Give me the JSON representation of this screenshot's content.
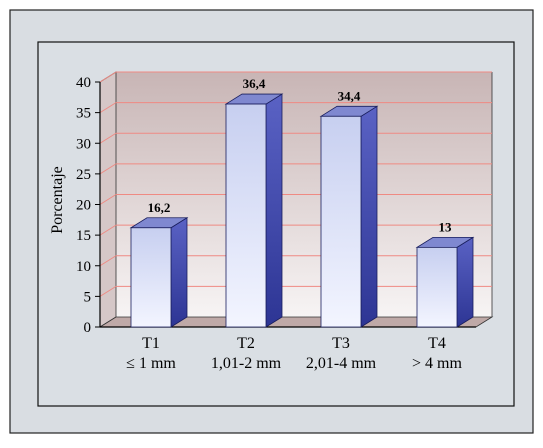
{
  "chart_data": {
    "type": "bar",
    "ylabel": "Porcentaje",
    "ylim": [
      0,
      40
    ],
    "y_ticks": [
      0,
      5,
      10,
      15,
      20,
      25,
      30,
      35,
      40
    ],
    "grid": true,
    "categories": [
      {
        "code": "T1",
        "range": "≤ 1 mm"
      },
      {
        "code": "T2",
        "range": "1,01-2 mm"
      },
      {
        "code": "T3",
        "range": "2,01-4 mm"
      },
      {
        "code": "T4",
        "range": "> 4 mm"
      }
    ],
    "values": [
      16.2,
      36.4,
      34.4,
      13
    ],
    "value_labels": [
      "16,2",
      "36,4",
      "34,4",
      "13"
    ]
  },
  "colors": {
    "frame_bg": "#d9dde2",
    "plot_bg_top": "#c8b5b5",
    "plot_bg_bottom": "#f7f4f4",
    "gridline": "#ef8a83",
    "floor": "#bfa9a7",
    "bar_front_top": "#c7cff0",
    "bar_front_bottom": "#f3f5ff",
    "bar_side": "#3e47ad",
    "bar_top": "#7f88d0"
  }
}
